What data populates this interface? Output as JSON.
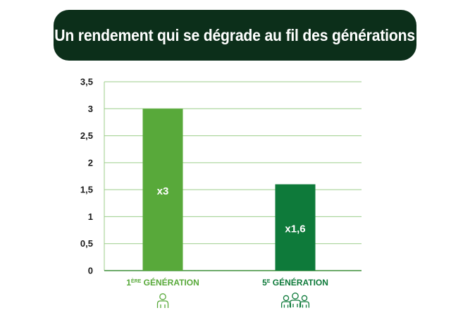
{
  "title": "Un rendement qui se dégrade au fil des générations",
  "colors": {
    "banner": "#0c2f1a",
    "bar_first": "#58a93a",
    "bar_fifth": "#0e7a3a",
    "grid": "#9ccd8a",
    "axis": "#3f8f3a"
  },
  "chart_data": {
    "type": "bar",
    "title": "Un rendement qui se dégrade au fil des générations",
    "xlabel": "",
    "ylabel": "",
    "ylim": [
      0,
      3.5
    ],
    "yticks": [
      {
        "value": 0,
        "label": "0"
      },
      {
        "value": 0.5,
        "label": "0,5"
      },
      {
        "value": 1,
        "label": "1"
      },
      {
        "value": 1.5,
        "label": "1,5"
      },
      {
        "value": 2,
        "label": "2"
      },
      {
        "value": 2.5,
        "label": "2,5"
      },
      {
        "value": 3,
        "label": "3"
      },
      {
        "value": 3.5,
        "label": "3,5"
      }
    ],
    "grid": true,
    "categories": [
      {
        "main": "1",
        "sup": "ÈRE",
        "rest": " GÉNÉRATION",
        "icon": "single-person-icon"
      },
      {
        "main": "5",
        "sup": "E",
        "rest": " GÉNÉRATION",
        "icon": "group-of-people-icon"
      }
    ],
    "values": [
      3,
      1.6
    ],
    "data_labels": [
      "x3",
      "x1,6"
    ]
  }
}
